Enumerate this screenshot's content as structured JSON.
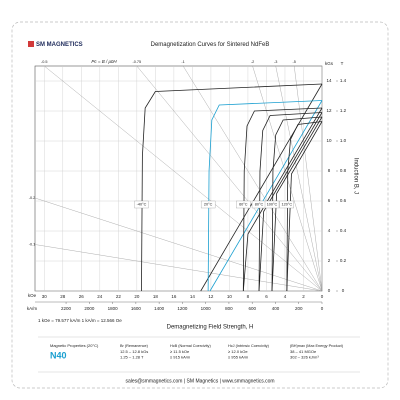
{
  "brand": "SM MAGNETICS",
  "chart_data": {
    "type": "line",
    "title": "Demagnetization Curves for Sintered NdFeB",
    "pc_label": "Pc = B / μ0H",
    "x_label": "Demagnetizing Field Strength, H",
    "y_label": "Induction B, J",
    "x_unit": "kOe",
    "x2_unit": "kA/m",
    "y_unit": "kGs",
    "y2_unit": "T",
    "conversion_note": "1 kOe = 79.577 kA/m   1 kA/m = 12.566 Oe",
    "xlim": [
      31,
      0
    ],
    "xticks": [
      30,
      28,
      26,
      24,
      22,
      20,
      18,
      16,
      14,
      12,
      10,
      8,
      6,
      4,
      2,
      0
    ],
    "x2lim": [
      2467,
      0
    ],
    "x2ticks": [
      2200,
      2000,
      1800,
      1600,
      1400,
      1200,
      1000,
      800,
      600,
      400,
      200,
      0
    ],
    "ylim": [
      0,
      15
    ],
    "yticks": [
      0,
      2,
      4,
      6,
      8,
      10,
      12,
      14
    ],
    "y2lim": [
      0,
      1.5
    ],
    "y2ticks": [
      0,
      0.2,
      0.4,
      0.6,
      0.8,
      {
        "value": 1,
        "label": "1.0"
      },
      1.2,
      1.4
    ],
    "grid": true,
    "pc_lines": [
      -0.1,
      -0.2,
      -0.5,
      -0.75,
      -1,
      -2,
      -3,
      -5
    ],
    "series": [
      {
        "name": "-40°C",
        "color": "#222222",
        "jx": [
          0,
          18,
          19.1,
          19.4,
          19.5
        ],
        "j": [
          13.8,
          13.3,
          12.2,
          9,
          0
        ],
        "bx": [
          0,
          13.1
        ],
        "b": [
          13.8,
          0
        ]
      },
      {
        "name": "20°C",
        "color": "#1a9fd0",
        "jx": [
          0,
          11.1,
          11.9,
          12.2,
          12.3
        ],
        "j": [
          12.7,
          12.4,
          11.4,
          8,
          0
        ],
        "bx": [
          0,
          12.1
        ],
        "b": [
          12.7,
          0
        ]
      },
      {
        "name": "60°C",
        "color": "#222222",
        "jx": [
          0,
          7.3,
          8.1,
          8.4,
          8.5
        ],
        "j": [
          12.2,
          12.0,
          11.0,
          8,
          0
        ],
        "bx": [
          0,
          8.0,
          8.5
        ],
        "b": [
          12.2,
          3.8,
          0
        ]
      },
      {
        "name": "80°C",
        "color": "#222222",
        "jx": [
          0,
          5.6,
          6.4,
          6.7,
          6.8
        ],
        "j": [
          11.9,
          11.7,
          10.7,
          8,
          0
        ],
        "bx": [
          0,
          6.3,
          6.8
        ],
        "b": [
          11.9,
          5.3,
          0
        ]
      },
      {
        "name": "100°C",
        "color": "#222222",
        "jx": [
          0,
          4.2,
          5.0,
          5.3,
          5.4
        ],
        "j": [
          11.6,
          11.4,
          10.4,
          8,
          0
        ],
        "bx": [
          0,
          4.9,
          5.4
        ],
        "b": [
          11.6,
          6.5,
          0
        ]
      },
      {
        "name": "120°C",
        "color": "#222222",
        "jx": [
          0,
          2.6,
          3.4,
          3.7,
          3.8
        ],
        "j": [
          11.3,
          11.1,
          10.1,
          8,
          0
        ],
        "bx": [
          0,
          3.3,
          3.8
        ],
        "b": [
          11.3,
          7.8,
          0
        ]
      }
    ]
  },
  "properties": {
    "heading": "Magnetic Properties (20°C)",
    "grade": "N40",
    "columns": [
      {
        "label": "Br (Remanence)",
        "lines": [
          "12.5 – 12.8 kGs",
          "1.25 – 1.28 T"
        ]
      },
      {
        "label": "HcB (Normal Coercivity)",
        "lines": [
          "≥ 11.5 kOe",
          "≥ 915 kA/m"
        ]
      },
      {
        "label": "HcJ (Intrinsic Coercivity)",
        "lines": [
          "≥ 12.0 kOe",
          "≥ 955 kA/m"
        ]
      },
      {
        "label": "(BH)max (Max Energy Product)",
        "lines": [
          "38 – 41 MGOe",
          "302 – 326 kJ/m³"
        ]
      }
    ]
  },
  "footer": "sales@smmagnetics.com | SM Magnetics | www.smmagnetics.com"
}
